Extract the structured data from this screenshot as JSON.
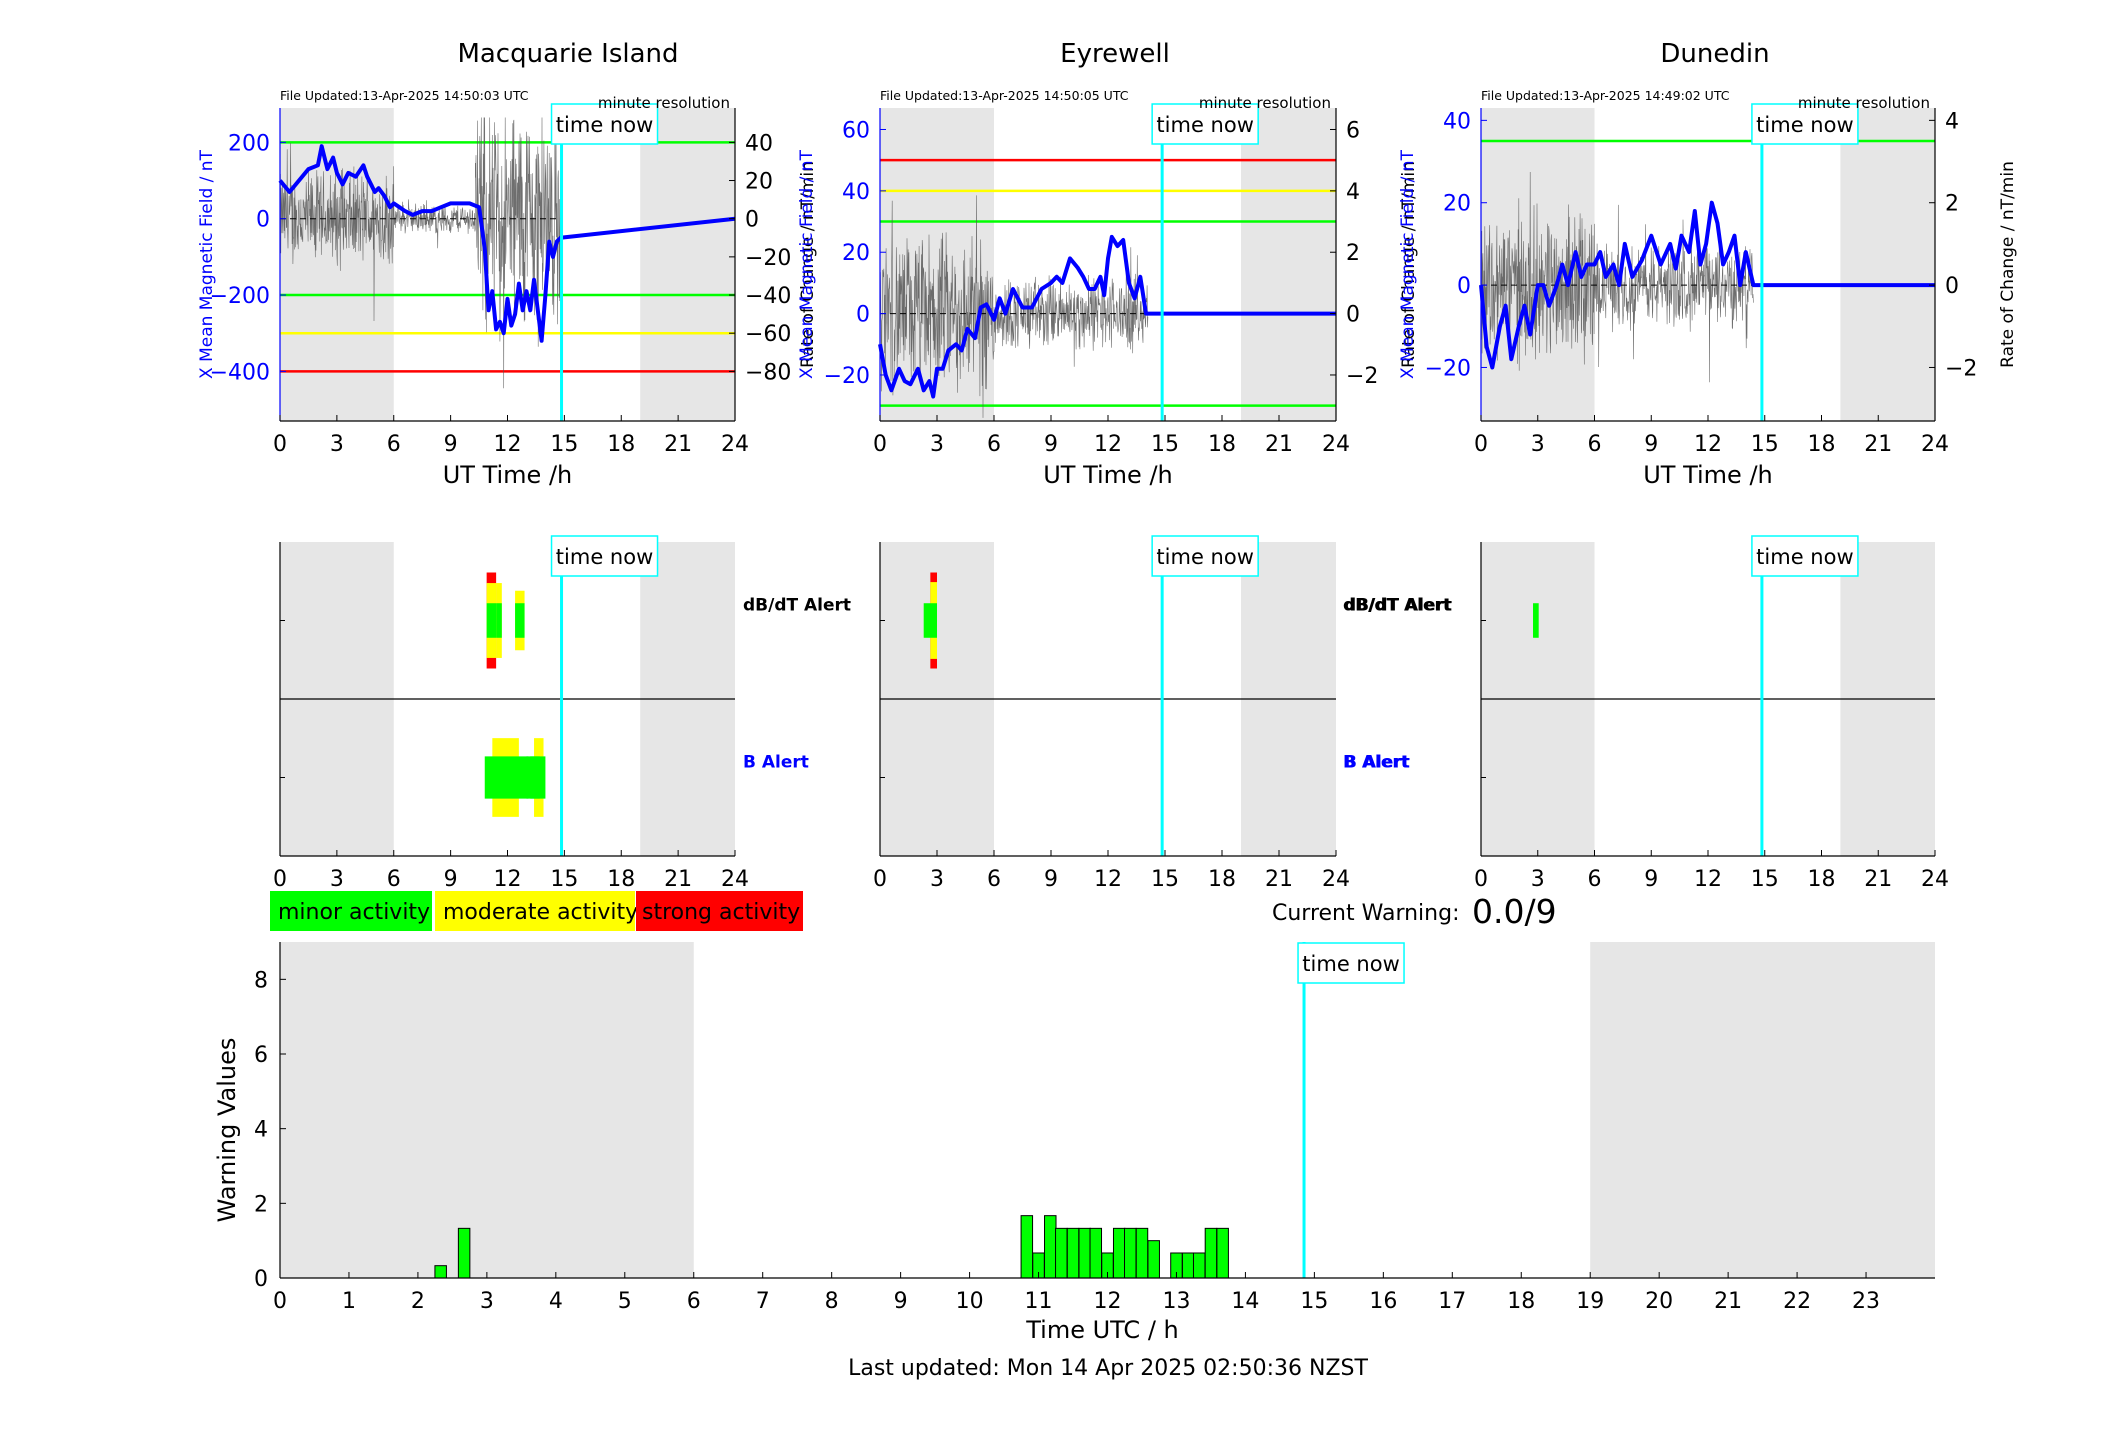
{
  "footer": "Last updated: Mon 14 Apr 2025 02:50:36 NZST",
  "current_warning": {
    "label": "Current Warning:",
    "value": "0.0/9"
  },
  "legend": [
    {
      "label": "minor activity",
      "color": "#00ff00"
    },
    {
      "label": "moderate activity",
      "color": "#ffff00"
    },
    {
      "label": "strong activity",
      "color": "#ff0000"
    }
  ],
  "time_now_label": "time now",
  "alert_labels": {
    "dbdt": "dB/dT Alert",
    "b": "B Alert"
  },
  "colors": {
    "field": "#0000ff",
    "now_line": "#00ffff",
    "night": "#e6e6e6",
    "minor": "#00ff00",
    "moderate": "#ffff00",
    "strong": "#ff0000"
  },
  "chart_data": [
    {
      "type": "line",
      "station": "Macquarie Island",
      "title": "Macquarie Island",
      "file_updated": "File Updated:13-Apr-2025 14:50:03 UTC",
      "resolution": "minute resolution",
      "xlabel": "UT Time /h",
      "ylabel_left": "X Mean Magnetic Field / nT",
      "ylabel_right": "Rate of Change / nT/min",
      "xlim": [
        0,
        24
      ],
      "xticks": [
        0,
        3,
        6,
        9,
        12,
        15,
        18,
        21,
        24
      ],
      "ylim_left": [
        -530,
        290
      ],
      "yticks_left": [
        -400,
        -200,
        0,
        200
      ],
      "ylim_right": [
        -106,
        58
      ],
      "yticks_right": [
        -80,
        -60,
        -40,
        -20,
        0,
        20,
        40
      ],
      "time_now": 14.85,
      "night_shading": [
        [
          0,
          6
        ],
        [
          19,
          24
        ]
      ],
      "threshold_lines": [
        {
          "value": 200,
          "color": "#00ff00"
        },
        {
          "value": -200,
          "color": "#00ff00"
        },
        {
          "value": -300,
          "color": "#ffff00"
        },
        {
          "value": -400,
          "color": "#ff0000"
        }
      ],
      "field_series": {
        "name": "X Mean Magnetic Field",
        "x": [
          0,
          0.5,
          1,
          1.5,
          2,
          2.2,
          2.5,
          2.8,
          3,
          3.3,
          3.6,
          4,
          4.4,
          4.6,
          4.8,
          5,
          5.2,
          5.5,
          5.8,
          6,
          6.3,
          6.6,
          7,
          7.5,
          8,
          8.5,
          9,
          9.5,
          10,
          10.5,
          10.8,
          11.0,
          11.2,
          11.4,
          11.6,
          11.8,
          12.0,
          12.2,
          12.4,
          12.6,
          12.8,
          13.0,
          13.2,
          13.4,
          13.6,
          13.8,
          14.0,
          14.2,
          14.4,
          14.6,
          14.8,
          24
        ],
        "values": [
          100,
          70,
          100,
          130,
          140,
          190,
          130,
          160,
          120,
          90,
          120,
          110,
          140,
          110,
          90,
          70,
          80,
          60,
          30,
          40,
          30,
          20,
          10,
          20,
          20,
          30,
          40,
          40,
          40,
          30,
          -80,
          -240,
          -190,
          -290,
          -270,
          -300,
          -210,
          -280,
          -250,
          -170,
          -240,
          -190,
          -240,
          -160,
          -240,
          -320,
          -200,
          -60,
          -100,
          -60,
          -50,
          0
        ]
      },
      "rate_series": {
        "name": "Rate of Change",
        "noise_amplitude": [
          [
            0,
            6,
            25
          ],
          [
            6,
            10.3,
            8
          ],
          [
            10.3,
            14.8,
            60
          ]
        ],
        "range": [
          -100,
          53
        ]
      }
    },
    {
      "type": "line",
      "station": "Eyrewell",
      "title": "Eyrewell",
      "file_updated": "File Updated:13-Apr-2025 14:50:05 UTC",
      "resolution": "minute resolution",
      "xlabel": "UT Time /h",
      "ylabel_left": "X Mean Magnetic Field / nT",
      "ylabel_right": "Rate of Change / nT/min",
      "xlim": [
        0,
        24
      ],
      "xticks": [
        0,
        3,
        6,
        9,
        12,
        15,
        18,
        21,
        24
      ],
      "ylim_left": [
        -35,
        67
      ],
      "yticks_left": [
        -20,
        0,
        20,
        40,
        60
      ],
      "ylim_right": [
        -3.5,
        6.7
      ],
      "yticks_right": [
        -2,
        0,
        2,
        4,
        6
      ],
      "time_now": 14.85,
      "night_shading": [
        [
          0,
          6
        ],
        [
          19,
          24
        ]
      ],
      "threshold_lines": [
        {
          "value": 50,
          "color": "#ff0000"
        },
        {
          "value": 40,
          "color": "#ffff00"
        },
        {
          "value": 30,
          "color": "#00ff00"
        },
        {
          "value": -30,
          "color": "#00ff00"
        }
      ],
      "field_series": {
        "name": "X Mean Magnetic Field",
        "x": [
          0,
          0.3,
          0.6,
          1,
          1.3,
          1.6,
          2,
          2.3,
          2.6,
          2.8,
          3,
          3.3,
          3.6,
          4,
          4.3,
          4.6,
          5,
          5.3,
          5.6,
          6,
          6.3,
          6.6,
          7,
          7.5,
          8,
          8.5,
          9,
          9.3,
          9.6,
          10,
          10.4,
          10.7,
          11,
          11.3,
          11.6,
          11.8,
          12.0,
          12.2,
          12.5,
          12.8,
          13.1,
          13.4,
          13.7,
          14.0,
          24
        ],
        "values": [
          -10,
          -20,
          -25,
          -18,
          -22,
          -23,
          -18,
          -25,
          -22,
          -27,
          -18,
          -18,
          -12,
          -10,
          -12,
          -5,
          -8,
          2,
          3,
          -2,
          5,
          0,
          8,
          2,
          2,
          8,
          10,
          12,
          10,
          18,
          15,
          12,
          8,
          8,
          12,
          6,
          18,
          25,
          22,
          24,
          10,
          5,
          12,
          0,
          0
        ]
      },
      "rate_series": {
        "name": "Rate of Change",
        "noise_amplitude": [
          [
            0,
            6,
            2.5
          ],
          [
            6,
            14.1,
            1.2
          ]
        ],
        "range": [
          -3.4,
          5.8
        ]
      }
    },
    {
      "type": "line",
      "station": "Dunedin",
      "title": "Dunedin",
      "file_updated": "File Updated:13-Apr-2025 14:49:02 UTC",
      "resolution": "minute resolution",
      "xlabel": "UT Time /h",
      "ylabel_left": "X Mean Magnetic Field / nT",
      "ylabel_right": "Rate of Change / nT/min",
      "xlim": [
        0,
        24
      ],
      "xticks": [
        0,
        3,
        6,
        9,
        12,
        15,
        18,
        21,
        24
      ],
      "ylim_left": [
        -33,
        43
      ],
      "yticks_left": [
        -20,
        0,
        20,
        40
      ],
      "ylim_right": [
        -3.3,
        4.3
      ],
      "yticks_right": [
        -2,
        0,
        2,
        4
      ],
      "time_now": 14.85,
      "night_shading": [
        [
          0,
          6
        ],
        [
          19,
          24
        ]
      ],
      "threshold_lines": [
        {
          "value": 35,
          "color": "#00ff00"
        }
      ],
      "field_series": {
        "name": "X Mean Magnetic Field",
        "x": [
          0,
          0.3,
          0.6,
          1,
          1.3,
          1.6,
          2,
          2.3,
          2.6,
          3,
          3.3,
          3.6,
          4,
          4.3,
          4.6,
          5,
          5.3,
          5.6,
          6,
          6.3,
          6.6,
          7,
          7.3,
          7.6,
          8,
          8.5,
          9,
          9.5,
          10,
          10.3,
          10.6,
          11,
          11.3,
          11.6,
          11.9,
          12.2,
          12.5,
          12.8,
          13.1,
          13.4,
          13.7,
          14.0,
          14.4,
          24
        ],
        "values": [
          0,
          -15,
          -20,
          -10,
          -5,
          -18,
          -10,
          -5,
          -12,
          0,
          0,
          -5,
          0,
          5,
          0,
          8,
          2,
          5,
          5,
          8,
          2,
          5,
          0,
          10,
          2,
          6,
          12,
          5,
          10,
          4,
          12,
          8,
          18,
          5,
          10,
          20,
          15,
          5,
          8,
          12,
          0,
          8,
          0,
          0
        ]
      },
      "rate_series": {
        "name": "Rate of Change",
        "noise_amplitude": [
          [
            0,
            6,
            1.8
          ],
          [
            6,
            14.4,
            1.0
          ]
        ],
        "range": [
          -3.2,
          3.4
        ]
      }
    },
    {
      "type": "heatmap",
      "station": "Macquarie Island",
      "rows": [
        "dB/dT Alert",
        "B Alert"
      ],
      "xlim": [
        0,
        24
      ],
      "xticks": [
        0,
        3,
        6,
        9,
        12,
        15,
        18,
        21,
        24
      ],
      "time_now": 14.85,
      "night_shading": [
        [
          0,
          6
        ],
        [
          19,
          24
        ]
      ],
      "blocks": [
        {
          "row": 0,
          "x0": 10.9,
          "x1": 11.4,
          "level": 3,
          "extent": 1.0
        },
        {
          "row": 0,
          "x0": 10.9,
          "x1": 11.4,
          "level": 2,
          "extent": 0.78
        },
        {
          "row": 0,
          "x0": 10.9,
          "x1": 11.4,
          "level": 1,
          "extent": 0.36
        },
        {
          "row": 0,
          "x0": 11.4,
          "x1": 11.7,
          "level": 2,
          "extent": 0.78
        },
        {
          "row": 0,
          "x0": 11.4,
          "x1": 11.7,
          "level": 1,
          "extent": 0.36
        },
        {
          "row": 0,
          "x0": 12.4,
          "x1": 12.9,
          "level": 2,
          "extent": 0.62
        },
        {
          "row": 0,
          "x0": 12.4,
          "x1": 12.9,
          "level": 1,
          "extent": 0.36
        },
        {
          "row": 1,
          "x0": 11.2,
          "x1": 12.6,
          "level": 2,
          "extent": 0.82
        },
        {
          "row": 1,
          "x0": 13.4,
          "x1": 13.9,
          "level": 2,
          "extent": 0.82
        },
        {
          "row": 1,
          "x0": 10.8,
          "x1": 13.6,
          "level": 1,
          "extent": 0.44
        },
        {
          "row": 1,
          "x0": 13.6,
          "x1": 13.7,
          "level": 0,
          "extent": 0.44
        },
        {
          "row": 1,
          "x0": 13.0,
          "x1": 13.1,
          "level": 0,
          "extent": 0.44
        },
        {
          "row": 1,
          "x0": 13.2,
          "x1": 14.0,
          "level": 1,
          "extent": 0.44
        }
      ]
    },
    {
      "type": "heatmap",
      "station": "Eyrewell",
      "rows": [
        "dB/dT Alert",
        "B Alert"
      ],
      "xlim": [
        0,
        24
      ],
      "xticks": [
        0,
        3,
        6,
        9,
        12,
        15,
        18,
        21,
        24
      ],
      "time_now": 14.85,
      "night_shading": [
        [
          0,
          6
        ],
        [
          19,
          24
        ]
      ],
      "blocks": [
        {
          "row": 0,
          "x0": 2.65,
          "x1": 3.0,
          "level": 3,
          "extent": 1.0
        },
        {
          "row": 0,
          "x0": 2.65,
          "x1": 3.0,
          "level": 2,
          "extent": 0.8
        },
        {
          "row": 0,
          "x0": 2.3,
          "x1": 3.0,
          "level": 1,
          "extent": 0.36
        }
      ]
    },
    {
      "type": "heatmap",
      "station": "Dunedin",
      "rows": [
        "dB/dT Alert",
        "B Alert"
      ],
      "xlim": [
        0,
        24
      ],
      "xticks": [
        0,
        3,
        6,
        9,
        12,
        15,
        18,
        21,
        24
      ],
      "time_now": 14.85,
      "night_shading": [
        [
          0,
          6
        ],
        [
          19,
          24
        ]
      ],
      "blocks": [
        {
          "row": 0,
          "x0": 2.75,
          "x1": 3.05,
          "level": 1,
          "extent": 0.36
        }
      ]
    },
    {
      "type": "bar",
      "xlabel": "Time UTC / h",
      "ylabel": "Warning Values",
      "xlim": [
        0,
        24
      ],
      "xticks": [
        0,
        1,
        2,
        3,
        4,
        5,
        6,
        7,
        8,
        9,
        10,
        11,
        12,
        13,
        14,
        15,
        16,
        17,
        18,
        19,
        20,
        21,
        22,
        23
      ],
      "ylim": [
        0,
        9
      ],
      "yticks": [
        0,
        2,
        4,
        6,
        8
      ],
      "time_now": 14.85,
      "night_shading": [
        [
          0,
          6
        ],
        [
          19,
          24
        ]
      ],
      "bar_width_h": 0.1667,
      "x": [
        2.33,
        2.67,
        10.83,
        11.0,
        11.17,
        11.33,
        11.5,
        11.67,
        11.83,
        12.0,
        12.17,
        12.33,
        12.5,
        12.67,
        13.0,
        13.17,
        13.33,
        13.5,
        13.67
      ],
      "values": [
        0.33,
        1.33,
        1.67,
        0.67,
        1.67,
        1.33,
        1.33,
        1.33,
        1.33,
        0.67,
        1.33,
        1.33,
        1.33,
        1.0,
        0.67,
        0.67,
        0.67,
        1.33,
        1.33
      ]
    }
  ]
}
